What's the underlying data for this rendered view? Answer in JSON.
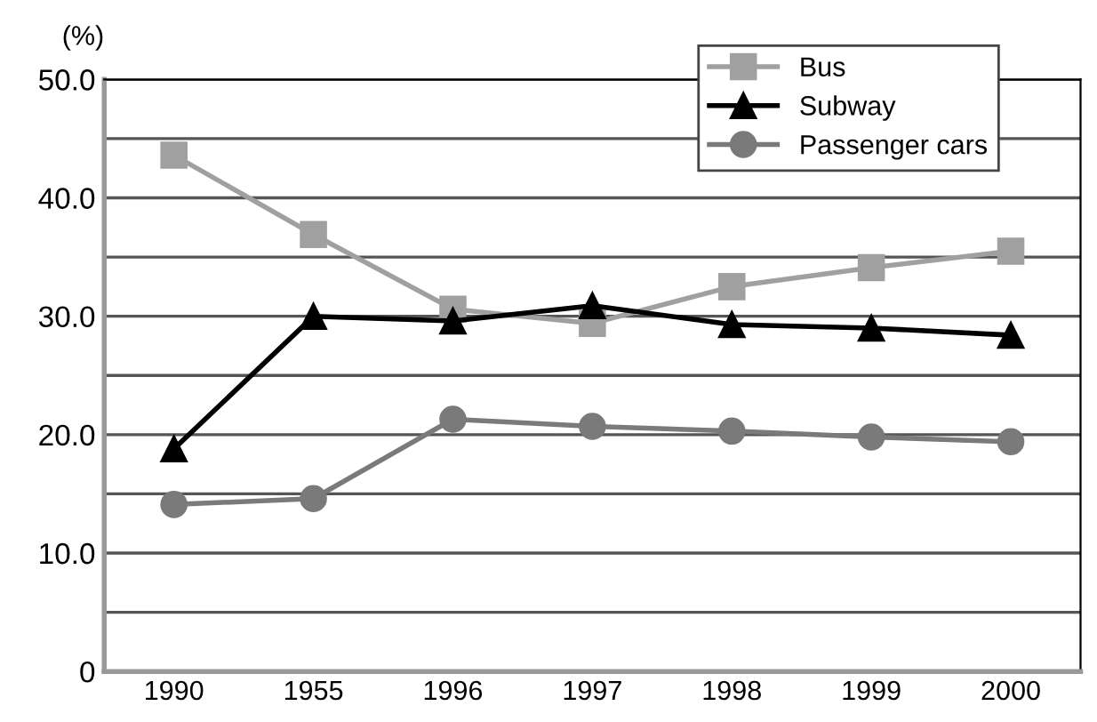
{
  "chart_data": {
    "type": "line",
    "ylabel": "(%)",
    "categories": [
      "1990",
      "1955",
      "1996",
      "1997",
      "1998",
      "1999",
      "2000"
    ],
    "series": [
      {
        "name": "Bus",
        "color": "#a0a0a0",
        "marker": "square",
        "values": [
          43.6,
          36.9,
          30.6,
          29.4,
          32.5,
          34.1,
          35.5
        ]
      },
      {
        "name": "Subway",
        "color": "#000000",
        "marker": "triangle",
        "values": [
          18.8,
          30.0,
          29.6,
          30.9,
          29.3,
          29.0,
          28.4
        ]
      },
      {
        "name": "Passenger cars",
        "color": "#7a7a7a",
        "marker": "circle",
        "values": [
          14.1,
          14.6,
          21.3,
          20.7,
          20.3,
          19.8,
          19.4
        ]
      }
    ],
    "ylim": [
      0,
      50
    ],
    "yticks": [
      0,
      {
        "value": 5,
        "label": null
      },
      {
        "value": 10,
        "label": "10.0"
      },
      {
        "value": 15,
        "label": null
      },
      {
        "value": 20,
        "label": "20.0"
      },
      {
        "value": 25,
        "label": null
      },
      {
        "value": 30,
        "label": "30.0"
      },
      {
        "value": 35,
        "label": null
      },
      {
        "value": 40,
        "label": "40.0"
      },
      {
        "value": 45,
        "label": null
      },
      {
        "value": 50,
        "label": "50.0"
      }
    ],
    "grid": "y",
    "legend": "top right",
    "line_style": "solid"
  }
}
